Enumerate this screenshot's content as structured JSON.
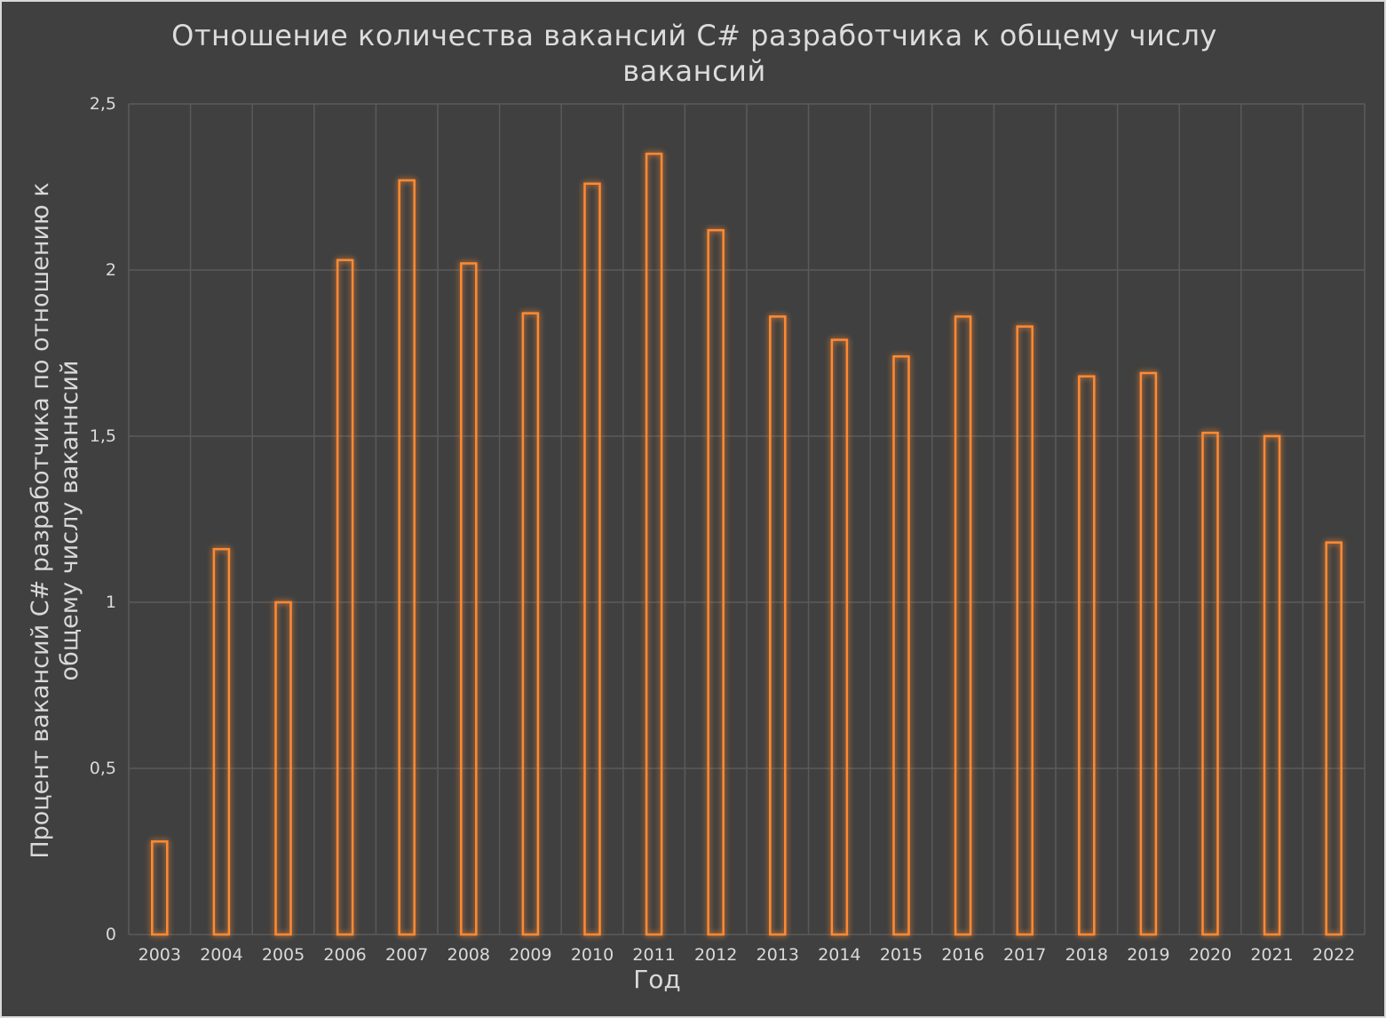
{
  "chart_data": {
    "type": "bar",
    "title": "Отношение количества вакансий C# разработчика к общему числу вакансий",
    "xlabel": "Год",
    "ylabel": "Процент вакансий C# разработчика по отношению к общему числу ваканнсий",
    "categories": [
      "2003",
      "2004",
      "2005",
      "2006",
      "2007",
      "2008",
      "2009",
      "2010",
      "2011",
      "2012",
      "2013",
      "2014",
      "2015",
      "2016",
      "2017",
      "2018",
      "2019",
      "2020",
      "2021",
      "2022"
    ],
    "values": [
      0.28,
      1.16,
      1.0,
      2.03,
      2.27,
      2.02,
      1.87,
      2.26,
      2.35,
      2.12,
      1.86,
      1.79,
      1.74,
      1.86,
      1.83,
      1.68,
      1.69,
      1.51,
      1.5,
      1.18
    ],
    "ylim": [
      0,
      2.5
    ],
    "yticks": [
      "0",
      "0,5",
      "1",
      "1,5",
      "2",
      "2,5"
    ],
    "ytick_values": [
      0,
      0.5,
      1,
      1.5,
      2,
      2.5
    ],
    "grid": true,
    "legend": "none",
    "colors": {
      "background": "#404040",
      "bar_edge": "#ff8a33",
      "grid": "#5a5a5a",
      "text": "#d9d9d9"
    }
  }
}
